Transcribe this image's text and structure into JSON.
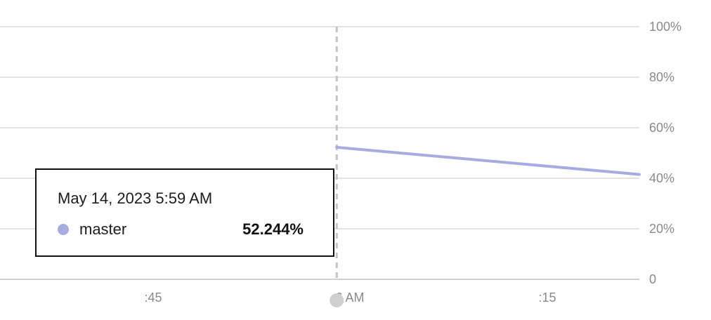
{
  "chart_data": {
    "type": "line",
    "y_ticks": [
      "0",
      "20%",
      "40%",
      "60%",
      "80%",
      "100%"
    ],
    "ylim": [
      0,
      100
    ],
    "x_ticks": [
      ":45",
      "6 AM",
      ":15"
    ],
    "grid": true,
    "series": [
      {
        "name": "master",
        "color": "#a6acdf",
        "points": [
          {
            "x": "5:59 AM",
            "y": 52.244
          },
          {
            "x": "6:23 AM",
            "y": 41.5
          }
        ]
      }
    ],
    "crosshair_x": "5:59 AM",
    "tooltip": {
      "date": "May 14, 2023 5:59 AM",
      "series_name": "master",
      "value": "52.244%",
      "color": "#a6acdf"
    }
  }
}
